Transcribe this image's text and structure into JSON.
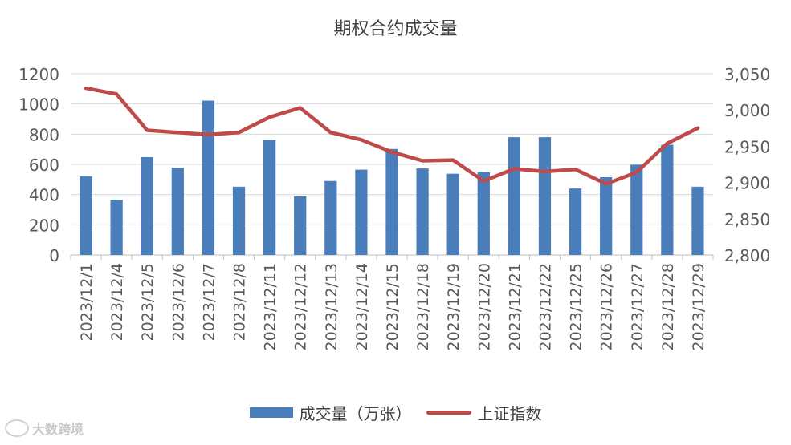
{
  "chart_data": {
    "type": "bar",
    "title": "期权合约成交量",
    "categories": [
      "2023/12/1",
      "2023/12/4",
      "2023/12/5",
      "2023/12/6",
      "2023/12/7",
      "2023/12/8",
      "2023/12/11",
      "2023/12/12",
      "2023/12/13",
      "2023/12/14",
      "2023/12/15",
      "2023/12/18",
      "2023/12/19",
      "2023/12/20",
      "2023/12/21",
      "2023/12/22",
      "2023/12/25",
      "2023/12/26",
      "2023/12/27",
      "2023/12/28",
      "2023/12/29"
    ],
    "series": [
      {
        "name": "成交量（万张）",
        "type": "bar",
        "axis": "left",
        "color": "#4a7ebb",
        "values": [
          520,
          365,
          648,
          578,
          1022,
          452,
          760,
          388,
          490,
          565,
          702,
          573,
          538,
          548,
          780,
          780,
          440,
          515,
          598,
          730,
          452
        ]
      },
      {
        "name": "上证指数",
        "type": "line",
        "axis": "right",
        "color": "#be4b48",
        "values": [
          3030,
          3022,
          2972,
          2969,
          2966,
          2969,
          2990,
          3003,
          2969,
          2959,
          2942,
          2930,
          2931,
          2902,
          2919,
          2915,
          2918,
          2898,
          2914,
          2954,
          2975
        ]
      }
    ],
    "y_left": {
      "min": 0,
      "max": 1200,
      "step": 200,
      "ticks": [
        "0",
        "200",
        "400",
        "600",
        "800",
        "1000",
        "1200"
      ]
    },
    "y_right": {
      "min": 2800,
      "max": 3050,
      "step": 50,
      "ticks": [
        "2,800",
        "2,850",
        "2,900",
        "2,950",
        "3,000",
        "3,050"
      ]
    },
    "grid": true,
    "legend": "bottom"
  },
  "watermark": {
    "text": "大数跨境"
  }
}
